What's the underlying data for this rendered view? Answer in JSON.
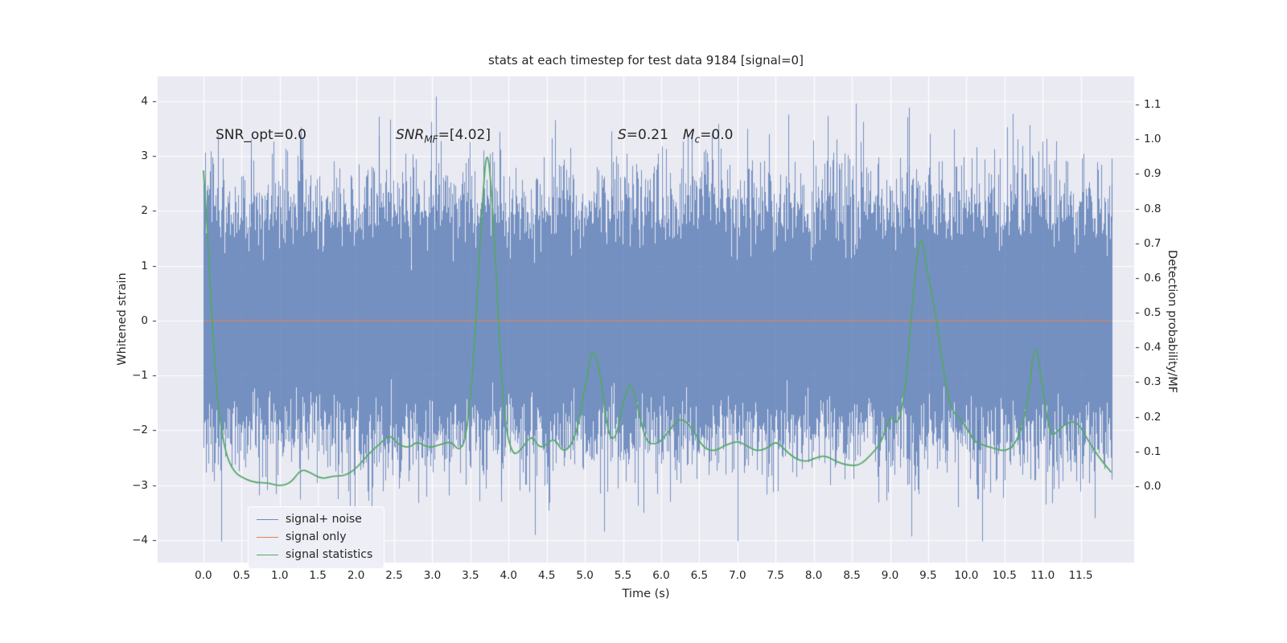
{
  "figure": {
    "title": "stats at each timestep for test data 9184 [signal=0]"
  },
  "annotations": {
    "snr_opt": "SNR_opt=0.0",
    "snr_mf_pre": "SNR",
    "snr_mf_sub": "MF",
    "snr_mf_post": "=[4.02]",
    "s_pre": "S",
    "s_val": "=0.21",
    "mc_pre": "M",
    "mc_sub": "c",
    "mc_post": "=0.0"
  },
  "legend": {
    "items": [
      {
        "label": "signal+ noise",
        "color": "rgba(76,114,176,0.8)"
      },
      {
        "label": "signal only",
        "color": "#dd8452"
      },
      {
        "label": "signal statistics",
        "color": "#55a868"
      }
    ]
  },
  "chart_data": {
    "type": "line",
    "title": "stats at each timestep for test data 9184 [signal=0]",
    "xlabel": "Time (s)",
    "ylabel_left": "Whitened strain",
    "ylabel_right": "Detection probability/MF",
    "xlim": [
      -0.6,
      12.2
    ],
    "ylim_left": [
      -4.41,
      4.45
    ],
    "ylim_right": [
      -0.22,
      1.181
    ],
    "x_ticks": [
      0.0,
      0.5,
      1.0,
      1.5,
      2.0,
      2.5,
      3.0,
      3.5,
      4.0,
      4.5,
      5.0,
      5.5,
      6.0,
      6.5,
      7.0,
      7.5,
      8.0,
      8.5,
      9.0,
      9.5,
      10.0,
      10.5,
      11.0,
      11.5
    ],
    "y_ticks_left": [
      -4,
      -3,
      -2,
      -1,
      0,
      1,
      2,
      3,
      4
    ],
    "y_ticks_right": [
      0.0,
      0.1,
      0.2,
      0.3,
      0.4,
      0.5,
      0.6,
      0.7,
      0.8,
      0.9,
      1.0,
      1.1
    ],
    "grid": true,
    "legend_position": "lower left",
    "plot_bg": "#eaeaf2",
    "grid_color": "#ffffff",
    "tick_color": "#262626",
    "series": [
      {
        "name": "signal+ noise",
        "type": "noise",
        "axis": "left",
        "color": "#4c72b0",
        "alpha": 0.75,
        "mean": 0,
        "std": 1.0,
        "x_range": [
          0,
          11.9
        ],
        "samples_per_pixel": 40,
        "seed": 9184,
        "spikes": [
          [
            3.05,
            4.08
          ],
          [
            9.25,
            3.88
          ],
          [
            5.35,
            3.45
          ],
          [
            0.62,
            3.3
          ],
          [
            2.3,
            3.35
          ],
          [
            8.3,
            3.3
          ],
          [
            1.3,
            3.3
          ],
          [
            11.9,
            2.95
          ],
          [
            7.0,
            -4.02
          ],
          [
            11.68,
            -3.6
          ],
          [
            3.9,
            -3.3
          ],
          [
            10.15,
            -3.25
          ]
        ]
      },
      {
        "name": "signal only",
        "type": "constant",
        "axis": "left",
        "color": "#dd8452",
        "value": 0,
        "x_range": [
          0,
          11.9
        ]
      },
      {
        "name": "signal statistics",
        "type": "line",
        "axis": "right",
        "color": "#55a868",
        "points": [
          [
            0.0,
            0.91
          ],
          [
            0.05,
            0.75
          ],
          [
            0.1,
            0.52
          ],
          [
            0.18,
            0.25
          ],
          [
            0.28,
            0.1
          ],
          [
            0.4,
            0.04
          ],
          [
            0.55,
            0.02
          ],
          [
            0.7,
            0.01
          ],
          [
            0.85,
            0.01
          ],
          [
            1.0,
            0.0
          ],
          [
            1.15,
            0.01
          ],
          [
            1.28,
            0.05
          ],
          [
            1.4,
            0.04
          ],
          [
            1.55,
            0.02
          ],
          [
            1.7,
            0.03
          ],
          [
            1.85,
            0.03
          ],
          [
            2.0,
            0.05
          ],
          [
            2.15,
            0.09
          ],
          [
            2.3,
            0.12
          ],
          [
            2.45,
            0.15
          ],
          [
            2.55,
            0.12
          ],
          [
            2.7,
            0.11
          ],
          [
            2.8,
            0.13
          ],
          [
            2.95,
            0.11
          ],
          [
            3.1,
            0.12
          ],
          [
            3.25,
            0.13
          ],
          [
            3.35,
            0.1
          ],
          [
            3.45,
            0.14
          ],
          [
            3.55,
            0.38
          ],
          [
            3.65,
            0.8
          ],
          [
            3.72,
            1.0
          ],
          [
            3.8,
            0.78
          ],
          [
            3.88,
            0.42
          ],
          [
            3.95,
            0.18
          ],
          [
            4.05,
            0.09
          ],
          [
            4.15,
            0.1
          ],
          [
            4.3,
            0.15
          ],
          [
            4.4,
            0.11
          ],
          [
            4.5,
            0.12
          ],
          [
            4.6,
            0.14
          ],
          [
            4.7,
            0.1
          ],
          [
            4.8,
            0.11
          ],
          [
            4.9,
            0.16
          ],
          [
            5.0,
            0.28
          ],
          [
            5.1,
            0.41
          ],
          [
            5.2,
            0.33
          ],
          [
            5.3,
            0.15
          ],
          [
            5.4,
            0.13
          ],
          [
            5.5,
            0.24
          ],
          [
            5.6,
            0.31
          ],
          [
            5.7,
            0.22
          ],
          [
            5.8,
            0.13
          ],
          [
            5.9,
            0.12
          ],
          [
            6.0,
            0.13
          ],
          [
            6.1,
            0.16
          ],
          [
            6.25,
            0.2
          ],
          [
            6.4,
            0.17
          ],
          [
            6.55,
            0.11
          ],
          [
            6.7,
            0.1
          ],
          [
            6.85,
            0.12
          ],
          [
            7.0,
            0.13
          ],
          [
            7.1,
            0.12
          ],
          [
            7.25,
            0.1
          ],
          [
            7.4,
            0.11
          ],
          [
            7.5,
            0.13
          ],
          [
            7.6,
            0.11
          ],
          [
            7.75,
            0.08
          ],
          [
            7.9,
            0.07
          ],
          [
            8.0,
            0.08
          ],
          [
            8.15,
            0.09
          ],
          [
            8.3,
            0.07
          ],
          [
            8.45,
            0.06
          ],
          [
            8.6,
            0.06
          ],
          [
            8.75,
            0.09
          ],
          [
            8.9,
            0.13
          ],
          [
            9.0,
            0.21
          ],
          [
            9.1,
            0.17
          ],
          [
            9.2,
            0.27
          ],
          [
            9.3,
            0.55
          ],
          [
            9.4,
            0.75
          ],
          [
            9.5,
            0.6
          ],
          [
            9.6,
            0.5
          ],
          [
            9.7,
            0.33
          ],
          [
            9.8,
            0.22
          ],
          [
            9.9,
            0.2
          ],
          [
            10.0,
            0.17
          ],
          [
            10.1,
            0.13
          ],
          [
            10.2,
            0.12
          ],
          [
            10.35,
            0.11
          ],
          [
            10.5,
            0.1
          ],
          [
            10.65,
            0.12
          ],
          [
            10.8,
            0.22
          ],
          [
            10.9,
            0.44
          ],
          [
            11.0,
            0.28
          ],
          [
            11.1,
            0.14
          ],
          [
            11.2,
            0.16
          ],
          [
            11.3,
            0.18
          ],
          [
            11.45,
            0.19
          ],
          [
            11.6,
            0.13
          ],
          [
            11.75,
            0.08
          ],
          [
            11.9,
            0.04
          ]
        ]
      }
    ]
  }
}
